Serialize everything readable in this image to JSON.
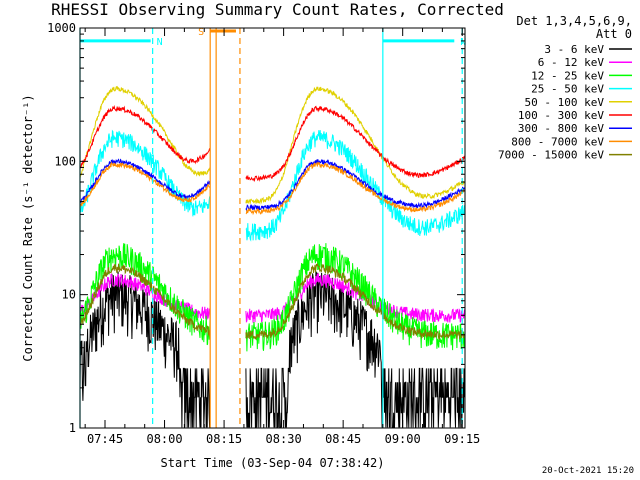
{
  "chart_data": {
    "type": "line",
    "title": "RHESSI Observing Summary Count Rates, Corrected",
    "xlabel": "Start Time (03-Sep-04 07:38:42)",
    "ylabel": "Corrected Count Rate (s⁻¹ detector⁻¹)",
    "yscale": "log",
    "ylim": [
      1,
      1000
    ],
    "xlim_minutes_after_0730": [
      8.7,
      105.7
    ],
    "x_ticks": [
      "07:45",
      "08:00",
      "08:15",
      "08:30",
      "08:45",
      "09:00",
      "09:15"
    ],
    "y_ticks": [
      "1",
      "10",
      "100",
      "1000"
    ],
    "detector_info": [
      "Det 1,3,4,5,6,9,",
      "Att 0"
    ],
    "legend": [
      {
        "name": "3 - 6 keV",
        "color": "#000000"
      },
      {
        "name": "6 - 12 keV",
        "color": "#ff00ff"
      },
      {
        "name": "12 - 25 keV",
        "color": "#00ff00"
      },
      {
        "name": "25 - 50 keV",
        "color": "#00ffff"
      },
      {
        "name": "50 - 100 keV",
        "color": "#e0d000"
      },
      {
        "name": "100 - 300 keV",
        "color": "#ff0000"
      },
      {
        "name": "300 - 800 keV",
        "color": "#0000ff"
      },
      {
        "name": "800 - 7000 keV",
        "color": "#ff8c00"
      },
      {
        "name": "7000 - 15000 keV",
        "color": "#808000"
      }
    ],
    "segments_minutes_after_0730": [
      [
        8.7,
        41.5
      ],
      [
        50.5,
        105.7
      ]
    ],
    "series": [
      {
        "name": "3 - 6 keV",
        "base": 2.5,
        "peak": 10.0,
        "noise": 0.5
      },
      {
        "name": "6 - 12 keV",
        "base": 7.0,
        "peak": 13.0,
        "noise": 0.12
      },
      {
        "name": "12 - 25 keV",
        "base": 5.0,
        "peak": 20.0,
        "noise": 0.25
      },
      {
        "name": "25 - 50 keV",
        "base": 30.0,
        "peak": 150.0,
        "noise": 0.15
      },
      {
        "name": "50 - 100 keV",
        "base": 50.0,
        "peak": 350.0,
        "noise": 0.04
      },
      {
        "name": "100 - 300 keV",
        "base": 75.0,
        "peak": 250.0,
        "noise": 0.04
      },
      {
        "name": "300 - 800 keV",
        "base": 45.0,
        "peak": 100.0,
        "noise": 0.04
      },
      {
        "name": "800 - 7000 keV",
        "base": 42.0,
        "peak": 95.0,
        "noise": 0.04
      },
      {
        "name": "7000 - 15000 keV",
        "base": 5.0,
        "peak": 16.0,
        "noise": 0.08
      }
    ],
    "flare_peaks_minutes_after_0730": [
      17.5,
      68.5
    ],
    "annotations": [
      {
        "label": "N",
        "color": "#00ffff",
        "x_start": 8.7,
        "x_end": 26.5,
        "level": 800
      },
      {
        "label": "N",
        "color": "#00ffff",
        "x_start": 85.0,
        "x_end": 103.0,
        "level": 800
      },
      {
        "label": "S",
        "color": "#ff8c00",
        "x_start": 41.5,
        "x_end": 48.0,
        "level": 950
      }
    ],
    "vlines": [
      {
        "x": 8.7,
        "color": "#00ffff",
        "style": "solid"
      },
      {
        "x": 27.0,
        "color": "#00ffff",
        "style": "dashed"
      },
      {
        "x": 41.5,
        "color": "#ff8c00",
        "style": "solid"
      },
      {
        "x": 43.0,
        "color": "#ff8c00",
        "style": "solid"
      },
      {
        "x": 49.0,
        "color": "#ff8c00",
        "style": "dashed"
      },
      {
        "x": 85.0,
        "color": "#00ffff",
        "style": "solid"
      },
      {
        "x": 105.0,
        "color": "#00ffff",
        "style": "dashed"
      }
    ]
  },
  "footer": {
    "timestamp": "20-Oct-2021 15:20"
  }
}
